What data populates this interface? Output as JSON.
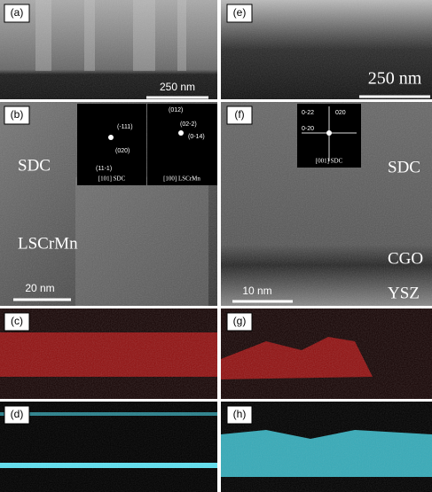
{
  "panels": [
    {
      "label": "(a)",
      "scale_bar": "250 nm"
    },
    {
      "label": "(b)",
      "scale_bar": "20 nm",
      "annotations": [
        "SDC",
        "LSCrMn"
      ],
      "insets": [
        {
          "spots": [
            "(-111)",
            "(020)",
            "(11-1)"
          ],
          "caption": "[101] SDC"
        },
        {
          "spots": [
            "(012)",
            "(02-2)",
            "(0-14)"
          ],
          "caption": "[100] LSCrMn"
        }
      ]
    },
    {
      "label": "(c)"
    },
    {
      "label": "(d)"
    },
    {
      "label": "(e)",
      "scale_bar": "250 nm"
    },
    {
      "label": "(f)",
      "scale_bar": "10 nm",
      "annotations": [
        "SDC",
        "CGO",
        "YSZ"
      ],
      "insets": [
        {
          "spots": [
            "0-22",
            "020",
            "0-20"
          ],
          "caption": "[001] SDC"
        }
      ]
    },
    {
      "label": "(g)"
    },
    {
      "label": "(h)"
    }
  ]
}
